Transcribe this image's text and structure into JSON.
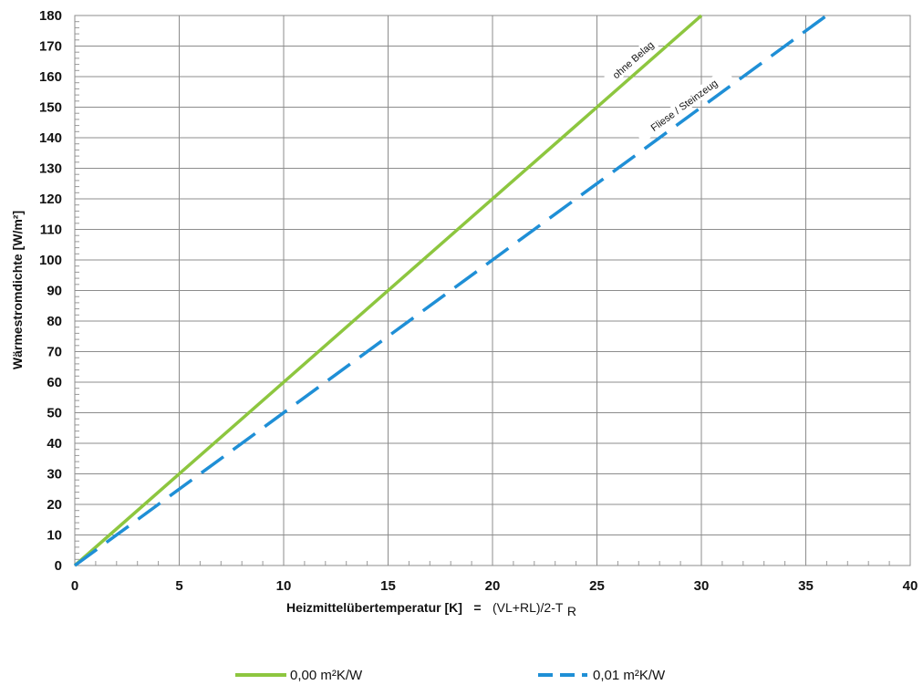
{
  "chart_data": {
    "type": "line",
    "xlabel": "Heizmittelübertemperatur [K]",
    "xlabel_formula": {
      "eq": "=",
      "main": "(VL+RL)/2-T",
      "sub": "R"
    },
    "ylabel": "Wärmestromdichte [W/m²]",
    "xlim": [
      0,
      40
    ],
    "ylim": [
      0,
      180
    ],
    "x_ticks": [
      0,
      5,
      10,
      15,
      20,
      25,
      30,
      35,
      40
    ],
    "y_ticks": [
      0,
      10,
      20,
      30,
      40,
      50,
      60,
      70,
      80,
      90,
      100,
      110,
      120,
      130,
      140,
      150,
      160,
      170,
      180
    ],
    "x_tick_labels": [
      "0",
      "5",
      "10",
      "15",
      "20",
      "25",
      "30",
      "35",
      "40"
    ],
    "y_tick_labels": [
      "0",
      "10",
      "20",
      "30",
      "40",
      "50",
      "60",
      "70",
      "80",
      "90",
      "100",
      "110",
      "120",
      "130",
      "140",
      "150",
      "160",
      "170",
      "180"
    ],
    "grid": true,
    "legend_position": "bottom",
    "series": [
      {
        "name": "0,00 m²K/W",
        "color": "#8dc63f",
        "dash": "solid",
        "x": [
          0,
          30
        ],
        "y": [
          0,
          180
        ]
      },
      {
        "name": "0,01 m²K/W",
        "color": "#1f8fd6",
        "dash": "dashed",
        "x": [
          0,
          36
        ],
        "y": [
          0,
          180
        ]
      }
    ],
    "annotations": [
      {
        "text": "ohne Belag",
        "series": 0,
        "x": 27.1
      },
      {
        "text": "Fliese / Steinzeug",
        "series": 1,
        "x": 29.5
      }
    ]
  }
}
